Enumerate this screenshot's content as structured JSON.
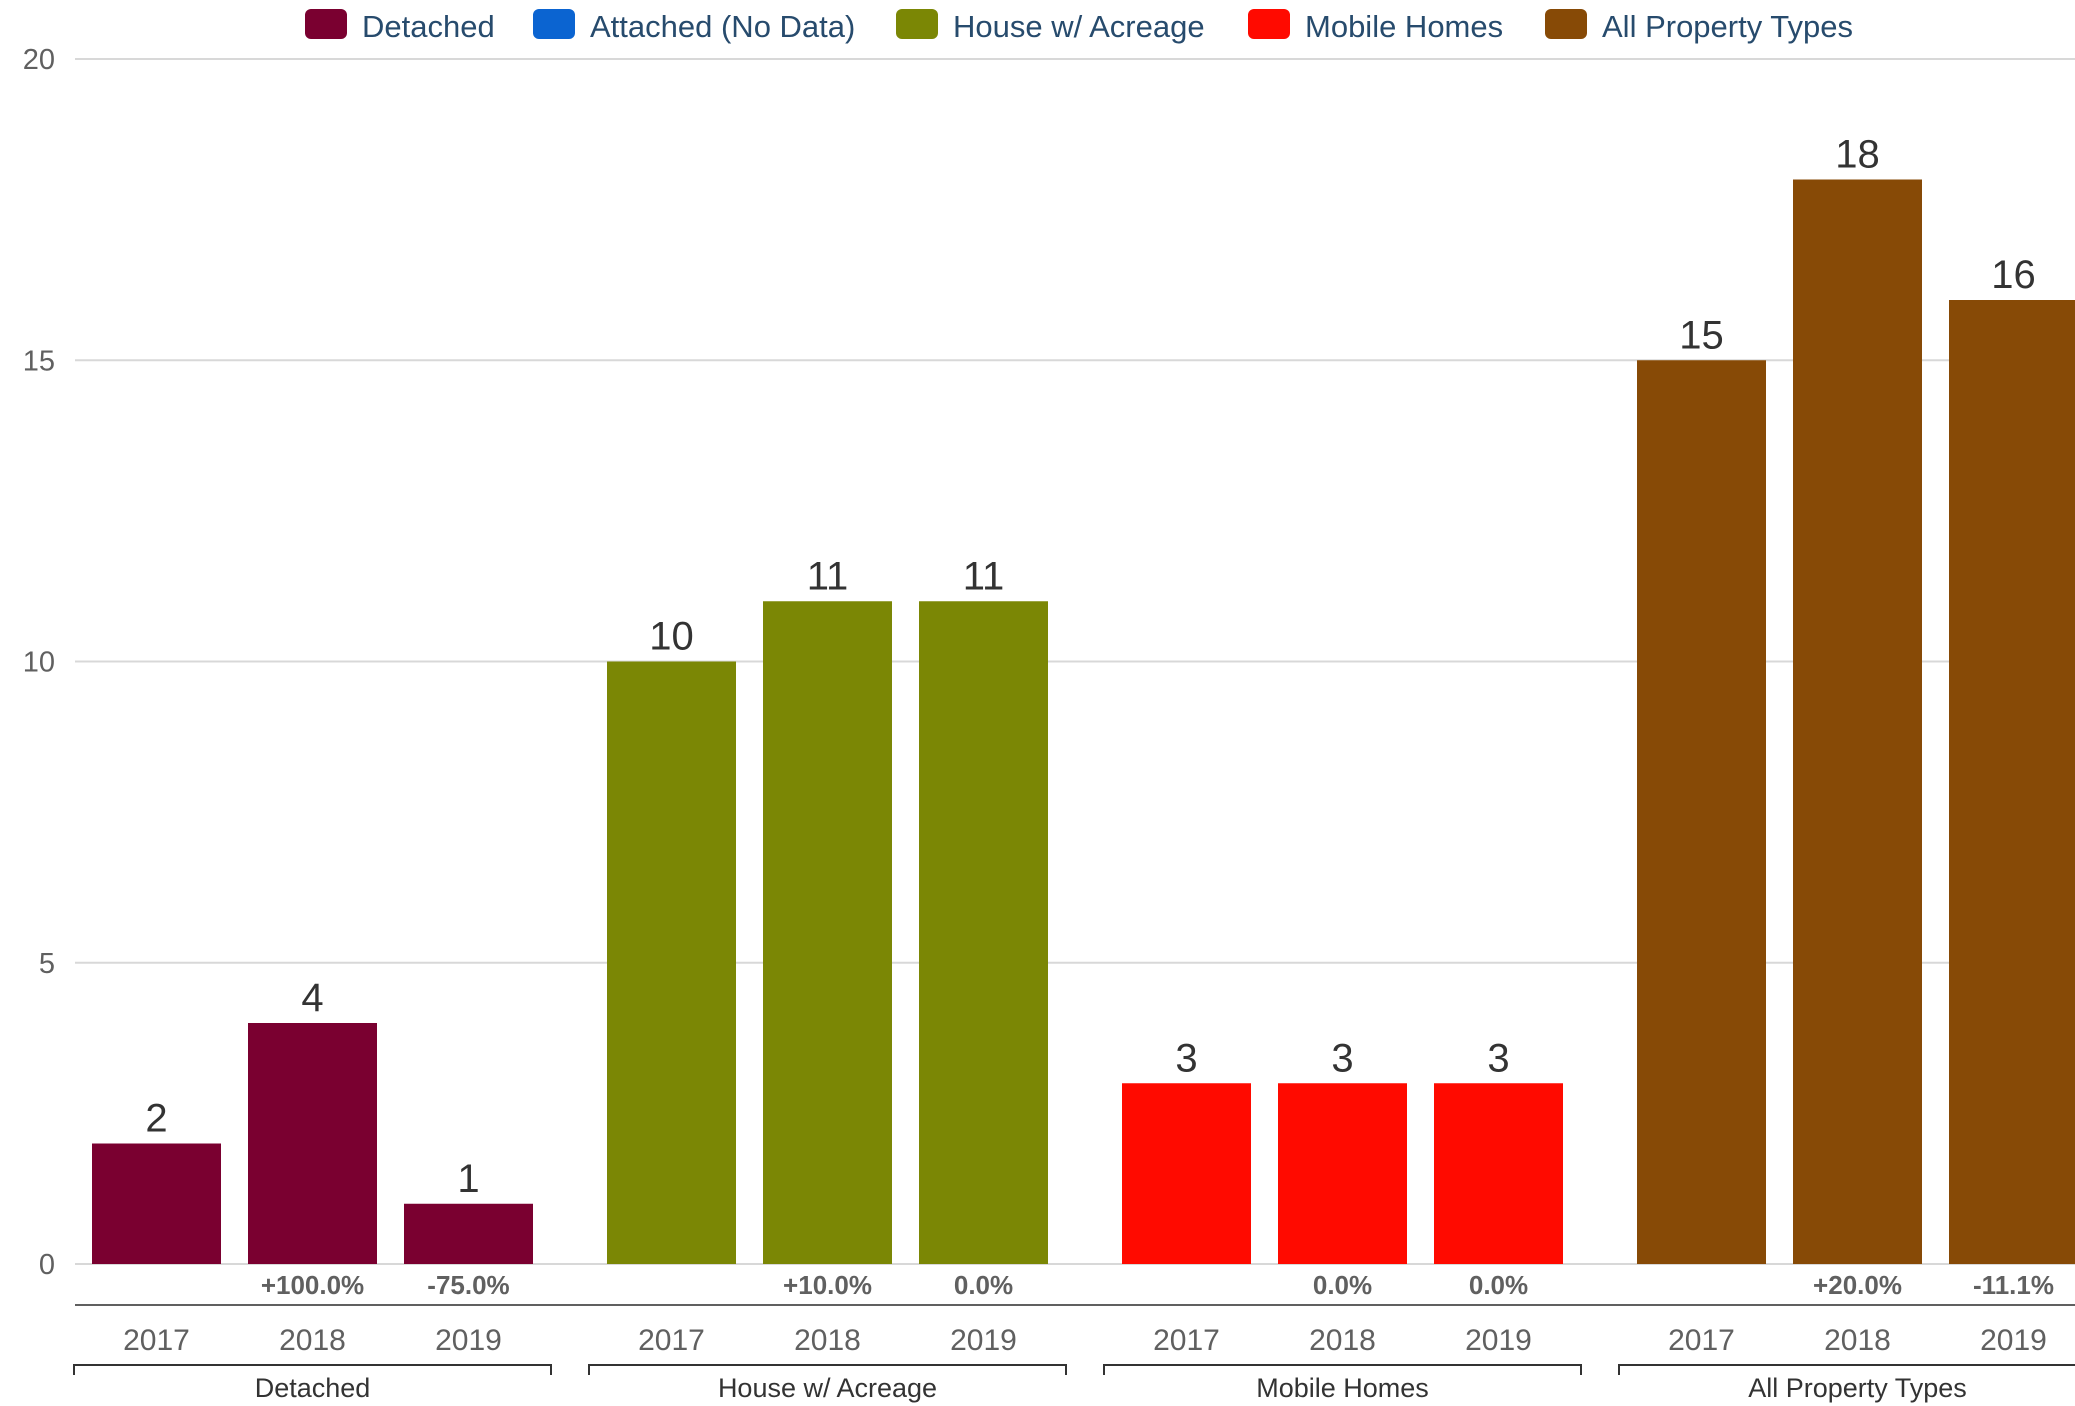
{
  "chart_data": {
    "type": "bar",
    "ylim": [
      0,
      20
    ],
    "yticks": [
      "0",
      "5",
      "10",
      "15",
      "20"
    ],
    "grid": true,
    "legend_position": "top",
    "legend": [
      {
        "name": "Detached",
        "color": "#7a0030"
      },
      {
        "name": "Attached (No Data)",
        "color": "#0b64d1"
      },
      {
        "name": "House w/ Acreage",
        "color": "#7b8705"
      },
      {
        "name": "Mobile Homes",
        "color": "#ff0a00"
      },
      {
        "name": "All Property Types",
        "color": "#874a06"
      }
    ],
    "groups": [
      {
        "name": "Detached",
        "color": "#7a0030",
        "categories": [
          "2017",
          "2018",
          "2019"
        ],
        "values": [
          2,
          4,
          1
        ],
        "changes": [
          "",
          "+100.0%",
          "-75.0%"
        ]
      },
      {
        "name": "House w/ Acreage",
        "color": "#7b8705",
        "categories": [
          "2017",
          "2018",
          "2019"
        ],
        "values": [
          10,
          11,
          11
        ],
        "changes": [
          "",
          "+10.0%",
          "0.0%"
        ]
      },
      {
        "name": "Mobile Homes",
        "color": "#ff0a00",
        "categories": [
          "2017",
          "2018",
          "2019"
        ],
        "values": [
          3,
          3,
          3
        ],
        "changes": [
          "",
          "0.0%",
          "0.0%"
        ]
      },
      {
        "name": "All Property Types",
        "color": "#874a06",
        "categories": [
          "2017",
          "2018",
          "2019"
        ],
        "values": [
          15,
          18,
          16
        ],
        "changes": [
          "",
          "+20.0%",
          "-11.1%"
        ]
      }
    ]
  }
}
